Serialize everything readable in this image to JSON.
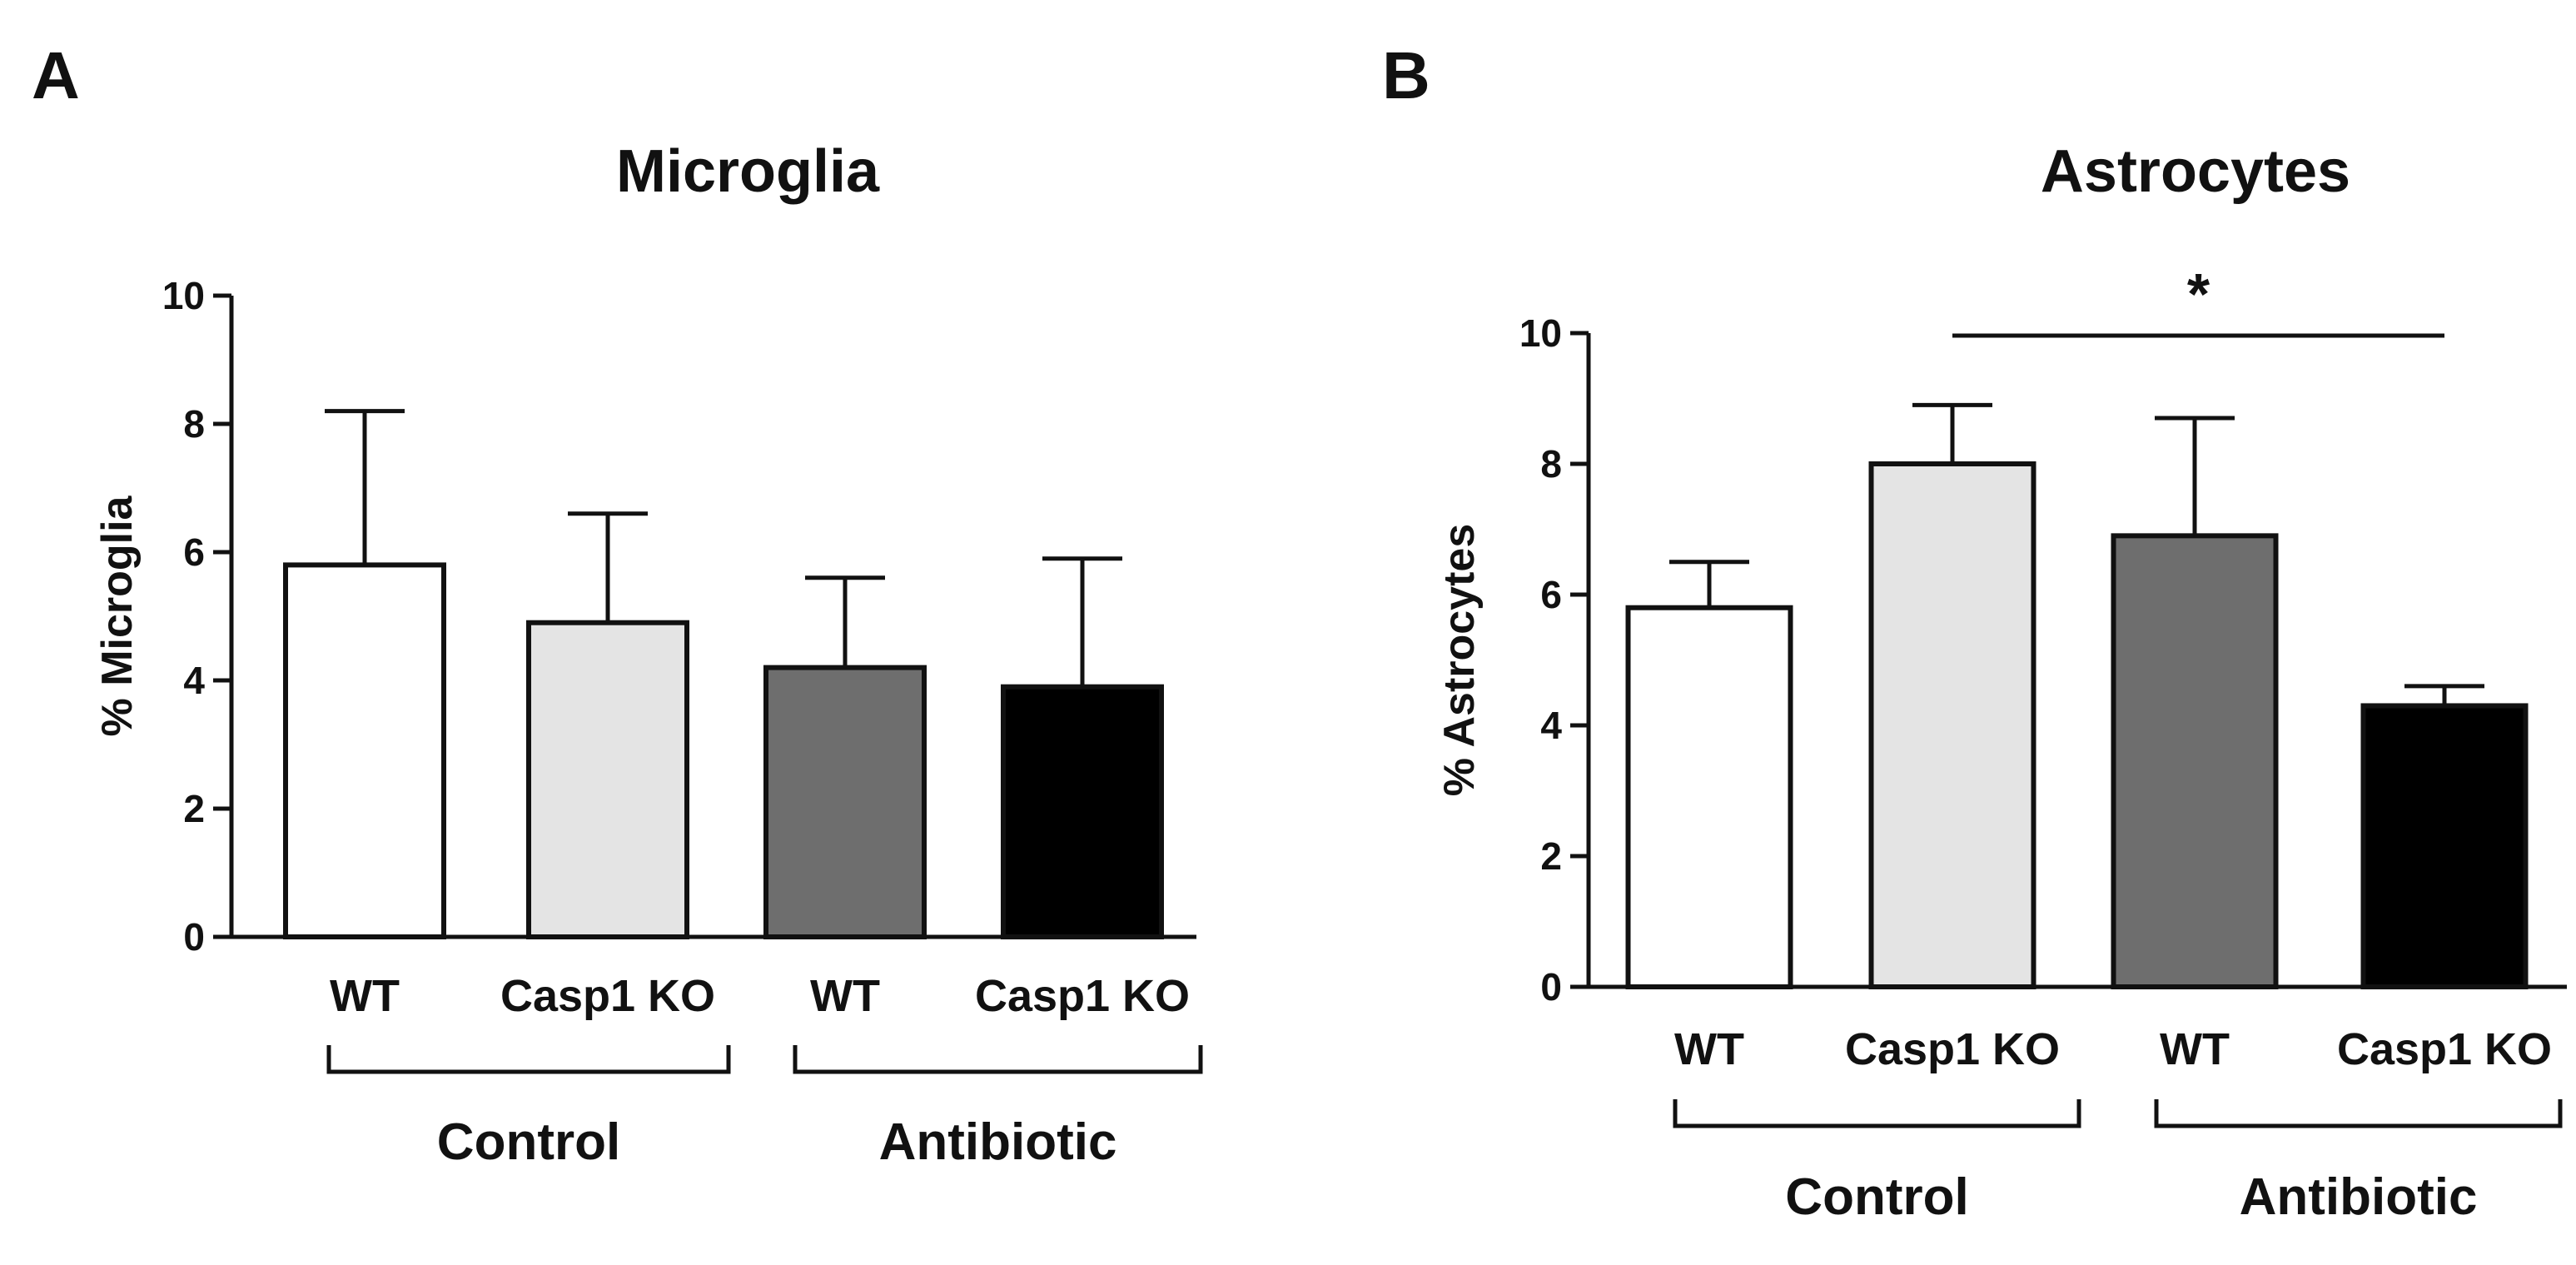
{
  "colors": {
    "ink": "#111111",
    "wt_control": "#ffffff",
    "casp1_control": "#e4e4e4",
    "wt_antibiotic": "#6e6e6e",
    "casp1_antibiotic": "#000000"
  },
  "chart_data": [
    {
      "panel": "A",
      "type": "bar",
      "title": "Microglia",
      "ylabel": "% Microglia",
      "xlabel": "",
      "ylim": [
        0,
        10
      ],
      "yticks": [
        "0",
        "2",
        "4",
        "6",
        "8",
        "10"
      ],
      "categories": [
        "WT",
        "Casp1 KO",
        "WT",
        "Casp1 KO"
      ],
      "values": [
        5.8,
        4.9,
        4.2,
        3.9
      ],
      "error_upper": [
        8.2,
        6.6,
        5.6,
        5.9
      ],
      "bar_colors": [
        "#ffffff",
        "#e4e4e4",
        "#6e6e6e",
        "#000000"
      ],
      "groups": [
        {
          "label": "Control",
          "members": [
            0,
            1
          ]
        },
        {
          "label": "Antibiotic",
          "members": [
            2,
            3
          ]
        }
      ],
      "significance": []
    },
    {
      "panel": "B",
      "type": "bar",
      "title": "Astrocytes",
      "ylabel": "% Astrocytes",
      "xlabel": "",
      "ylim": [
        0,
        10
      ],
      "yticks": [
        "0",
        "2",
        "4",
        "6",
        "8",
        "10"
      ],
      "categories": [
        "WT",
        "Casp1 KO",
        "WT",
        "Casp1 KO"
      ],
      "values": [
        5.8,
        8.0,
        6.9,
        4.3
      ],
      "error_upper": [
        6.5,
        8.9,
        8.7,
        4.6
      ],
      "bar_colors": [
        "#ffffff",
        "#e4e4e4",
        "#6e6e6e",
        "#000000"
      ],
      "groups": [
        {
          "label": "Control",
          "members": [
            0,
            1
          ]
        },
        {
          "label": "Antibiotic",
          "members": [
            2,
            3
          ]
        }
      ],
      "significance": [
        {
          "from": 1,
          "to": 3,
          "label": "*"
        }
      ]
    }
  ]
}
